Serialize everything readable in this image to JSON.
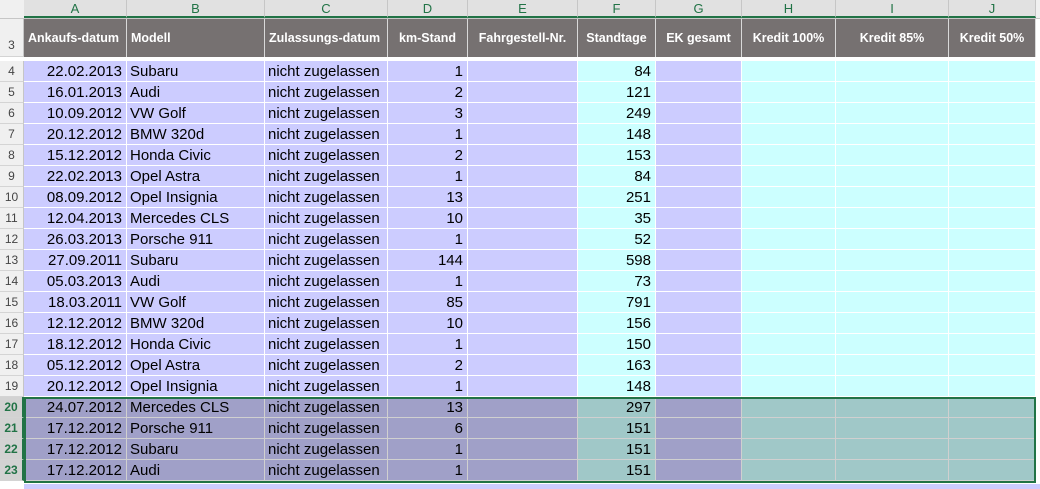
{
  "columns": [
    {
      "letter": "A",
      "header": "Ankaufs-datum"
    },
    {
      "letter": "B",
      "header": "Modell"
    },
    {
      "letter": "C",
      "header": "Zulassungs-datum"
    },
    {
      "letter": "D",
      "header": "km-Stand"
    },
    {
      "letter": "E",
      "header": "Fahrgestell-Nr."
    },
    {
      "letter": "F",
      "header": "Standtage"
    },
    {
      "letter": "G",
      "header": "EK gesamt"
    },
    {
      "letter": "H",
      "header": "Kredit 100%"
    },
    {
      "letter": "I",
      "header": "Kredit 85%"
    },
    {
      "letter": "J",
      "header": "Kredit 50%"
    }
  ],
  "header_row_number": "3",
  "rows": [
    {
      "num": "4",
      "date": "22.02.2013",
      "model": "Subaru",
      "zul": "nicht zugelassen",
      "km": "1",
      "days": "84"
    },
    {
      "num": "5",
      "date": "16.01.2013",
      "model": "Audi",
      "zul": "nicht zugelassen",
      "km": "2",
      "days": "121"
    },
    {
      "num": "6",
      "date": "10.09.2012",
      "model": "VW Golf",
      "zul": "nicht zugelassen",
      "km": "3",
      "days": "249"
    },
    {
      "num": "7",
      "date": "20.12.2012",
      "model": "BMW 320d",
      "zul": "nicht zugelassen",
      "km": "1",
      "days": "148"
    },
    {
      "num": "8",
      "date": "15.12.2012",
      "model": "Honda Civic",
      "zul": "nicht zugelassen",
      "km": "2",
      "days": "153"
    },
    {
      "num": "9",
      "date": "22.02.2013",
      "model": "Opel Astra",
      "zul": "nicht zugelassen",
      "km": "1",
      "days": "84"
    },
    {
      "num": "10",
      "date": "08.09.2012",
      "model": "Opel Insignia",
      "zul": "nicht zugelassen",
      "km": "13",
      "days": "251"
    },
    {
      "num": "11",
      "date": "12.04.2013",
      "model": "Mercedes CLS",
      "zul": "nicht zugelassen",
      "km": "10",
      "days": "35"
    },
    {
      "num": "12",
      "date": "26.03.2013",
      "model": "Porsche 911",
      "zul": "nicht zugelassen",
      "km": "1",
      "days": "52"
    },
    {
      "num": "13",
      "date": "27.09.2011",
      "model": "Subaru",
      "zul": "nicht zugelassen",
      "km": "144",
      "days": "598"
    },
    {
      "num": "14",
      "date": "05.03.2013",
      "model": "Audi",
      "zul": "nicht zugelassen",
      "km": "1",
      "days": "73"
    },
    {
      "num": "15",
      "date": "18.03.2011",
      "model": "VW Golf",
      "zul": "nicht zugelassen",
      "km": "85",
      "days": "791"
    },
    {
      "num": "16",
      "date": "12.12.2012",
      "model": "BMW 320d",
      "zul": "nicht zugelassen",
      "km": "10",
      "days": "156"
    },
    {
      "num": "17",
      "date": "18.12.2012",
      "model": "Honda Civic",
      "zul": "nicht zugelassen",
      "km": "1",
      "days": "150"
    },
    {
      "num": "18",
      "date": "05.12.2012",
      "model": "Opel Astra",
      "zul": "nicht zugelassen",
      "km": "2",
      "days": "163"
    },
    {
      "num": "19",
      "date": "20.12.2012",
      "model": "Opel Insignia",
      "zul": "nicht zugelassen",
      "km": "1",
      "days": "148"
    },
    {
      "num": "20",
      "date": "24.07.2012",
      "model": "Mercedes CLS",
      "zul": "nicht zugelassen",
      "km": "13",
      "days": "297",
      "selected": true
    },
    {
      "num": "21",
      "date": "17.12.2012",
      "model": "Porsche 911",
      "zul": "nicht zugelassen",
      "km": "6",
      "days": "151",
      "selected": true
    },
    {
      "num": "22",
      "date": "17.12.2012",
      "model": "Subaru",
      "zul": "nicht zugelassen",
      "km": "1",
      "days": "151",
      "selected": true
    },
    {
      "num": "23",
      "date": "17.12.2012",
      "model": "Audi",
      "zul": "nicht zugelassen",
      "km": "1",
      "days": "151",
      "selected": true
    }
  ],
  "colors": {
    "header_bg": "#767171",
    "band_purple": "#ccccff",
    "band_cyan": "#ccffff",
    "selection": "#217346"
  }
}
